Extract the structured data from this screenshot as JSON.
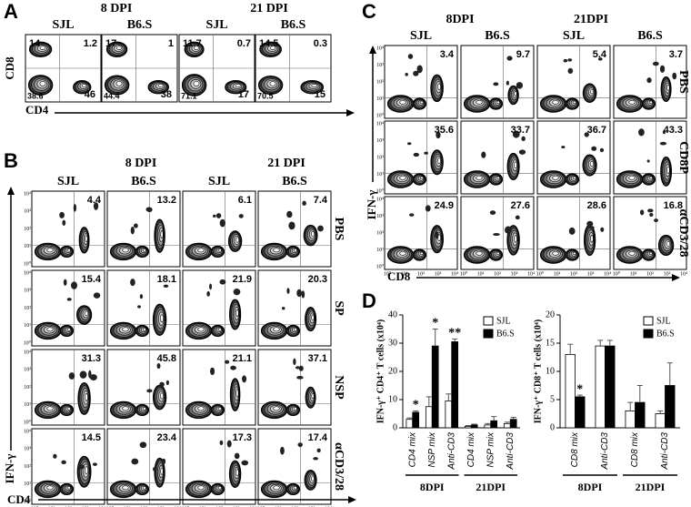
{
  "panel_a": {
    "label": "A",
    "timepoints": [
      "8 DPI",
      "21 DPI"
    ],
    "strains": [
      "SJL",
      "B6.S",
      "SJL",
      "B6.S"
    ],
    "y_axis": "CD8",
    "x_axis": "CD4",
    "plots": [
      {
        "ul": "14",
        "ur": "1.2",
        "ll": "38.6",
        "lr": "46"
      },
      {
        "ul": "17",
        "ur": "1",
        "ll": "44.4",
        "lr": "38"
      },
      {
        "ul": "11.7",
        "ur": "0.7",
        "ll": "71.1",
        "lr": "17"
      },
      {
        "ul": "14.5",
        "ur": "0.3",
        "ll": "70.5",
        "lr": "15"
      }
    ]
  },
  "panel_b": {
    "label": "B",
    "timepoints": [
      "8 DPI",
      "21 DPI"
    ],
    "strains": [
      "SJL",
      "B6.S",
      "SJL",
      "B6.S"
    ],
    "y_axis": "IFN-γ",
    "x_axis": "CD4",
    "axis_ticks": [
      "10⁰",
      "10¹",
      "10²",
      "10³",
      "10⁴"
    ],
    "rows": [
      {
        "name": "PBS",
        "values": [
          "4.4",
          "13.2",
          "6.1",
          "7.4"
        ]
      },
      {
        "name": "SP",
        "values": [
          "15.4",
          "18.1",
          "21.9",
          "20.3"
        ]
      },
      {
        "name": "NSP",
        "values": [
          "31.3",
          "45.8",
          "21.1",
          "37.1"
        ]
      },
      {
        "name": "αCD3/28",
        "values": [
          "14.5",
          "23.4",
          "17.3",
          "17.4"
        ]
      }
    ]
  },
  "panel_c": {
    "label": "C",
    "timepoints": [
      "8DPI",
      "21DPI"
    ],
    "strains": [
      "SJL",
      "B6.S",
      "SJL",
      "B6.S"
    ],
    "y_axis": "IFN-γ",
    "x_axis": "CD8",
    "axis_ticks": [
      "10⁰",
      "10¹",
      "10²",
      "10³",
      "10⁴"
    ],
    "rows": [
      {
        "name": "PBS",
        "values": [
          "3.4",
          "9.7",
          "5.4",
          "3.7"
        ]
      },
      {
        "name": "CD8P",
        "values": [
          "35.6",
          "33.7",
          "36.7",
          "43.3"
        ]
      },
      {
        "name": "αCD3/28",
        "values": [
          "24.9",
          "27.6",
          "28.6",
          "16.8"
        ]
      }
    ]
  },
  "panel_d": {
    "label": "D"
  },
  "chart_data": [
    {
      "type": "bar",
      "y_label": "IFN-γ⁺ CD4⁺ T cells (x10⁴)",
      "groups": [
        {
          "name": "8DPI",
          "categories": [
            "CD4 mix",
            "NSP mix",
            "Anti-CD3"
          ]
        },
        {
          "name": "21DPI",
          "categories": [
            "CD4 mix",
            "NSP mix",
            "Anti-CD3"
          ]
        }
      ],
      "series": [
        {
          "name": "SJL",
          "color": "#ffffff",
          "values": [
            3,
            7.5,
            9.5,
            0.5,
            1,
            1.5
          ],
          "errors": [
            0.5,
            3.5,
            2.5,
            0.3,
            0.5,
            0.5
          ]
        },
        {
          "name": "B6.S",
          "color": "#000000",
          "values": [
            5.5,
            29,
            30.5,
            1,
            2.5,
            3
          ],
          "errors": [
            0.5,
            6,
            1,
            0.3,
            1.5,
            0.7
          ],
          "significance": [
            "*",
            "*",
            "**",
            null,
            null,
            null
          ]
        }
      ],
      "ylim": [
        0,
        40
      ],
      "yticks": [
        0,
        10,
        20,
        30,
        40
      ],
      "legend": "upper-right"
    },
    {
      "type": "bar",
      "y_label": "IFN-γ⁺ CD8⁺ T cells (x10⁴)",
      "groups": [
        {
          "name": "8DPI",
          "categories": [
            "CD8 mix",
            "Anti-CD3"
          ]
        },
        {
          "name": "21DPI",
          "categories": [
            "CD8 mix",
            "Anti-CD3"
          ]
        }
      ],
      "series": [
        {
          "name": "SJL",
          "color": "#ffffff",
          "values": [
            13,
            14.5,
            3,
            2.5
          ],
          "errors": [
            1.8,
            1,
            1.5,
            0.5
          ]
        },
        {
          "name": "B6.S",
          "color": "#000000",
          "values": [
            5.5,
            14.5,
            4.5,
            7.5
          ],
          "errors": [
            0.3,
            1,
            3,
            4
          ],
          "significance": [
            "*",
            null,
            null,
            null
          ]
        }
      ],
      "ylim": [
        0,
        20
      ],
      "yticks": [
        0,
        5,
        10,
        15,
        20
      ],
      "legend": "upper-right"
    }
  ]
}
